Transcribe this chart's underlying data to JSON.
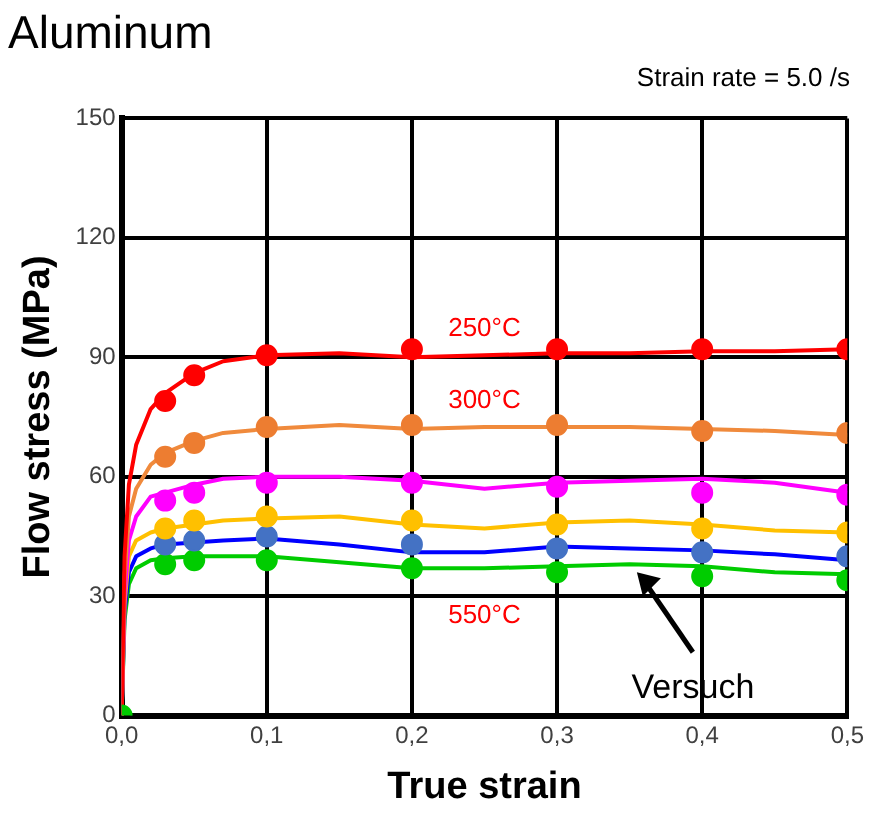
{
  "chart_data": {
    "type": "line",
    "title": "Aluminum",
    "subtitle": "Strain rate = 5.0 /s",
    "xlabel": "True strain",
    "ylabel": "Flow stress (MPa)",
    "xlim": [
      0,
      0.5
    ],
    "ylim": [
      0,
      150
    ],
    "xticks": [
      {
        "value": 0,
        "label": "0,0"
      },
      {
        "value": 0.1,
        "label": "0,1"
      },
      {
        "value": 0.2,
        "label": "0,2"
      },
      {
        "value": 0.3,
        "label": "0,3"
      },
      {
        "value": 0.4,
        "label": "0,4"
      },
      {
        "value": 0.5,
        "label": "0,5"
      }
    ],
    "yticks": [
      0,
      30,
      60,
      90,
      120,
      150
    ],
    "grid": true,
    "legend": false,
    "series": [
      {
        "type": "line",
        "name": "250°C",
        "marker": "none",
        "color": "#ff0000",
        "x": [
          0,
          0.002,
          0.005,
          0.01,
          0.02,
          0.03,
          0.05,
          0.07,
          0.1,
          0.15,
          0.2,
          0.25,
          0.3,
          0.35,
          0.4,
          0.45,
          0.5
        ],
        "values": [
          0,
          40,
          58,
          68,
          77,
          81,
          86,
          89,
          90.5,
          91,
          90,
          90.5,
          91,
          91,
          91.5,
          91.5,
          92
        ]
      },
      {
        "type": "line",
        "name": "300°C",
        "marker": "none",
        "color": "#f08a3c",
        "x": [
          0,
          0.002,
          0.005,
          0.01,
          0.02,
          0.03,
          0.05,
          0.07,
          0.1,
          0.15,
          0.2,
          0.25,
          0.3,
          0.35,
          0.4,
          0.45,
          0.5
        ],
        "values": [
          0,
          35,
          50,
          57,
          63,
          66,
          69,
          71,
          72,
          73,
          72,
          72.5,
          72.5,
          72.5,
          72,
          71.5,
          70.5
        ]
      },
      {
        "type": "line",
        "marker": "none",
        "color": "#ff00ff",
        "x": [
          0,
          0.002,
          0.005,
          0.01,
          0.02,
          0.03,
          0.05,
          0.07,
          0.1,
          0.15,
          0.2,
          0.25,
          0.3,
          0.35,
          0.4,
          0.45,
          0.5
        ],
        "values": [
          0,
          30,
          44,
          50,
          55,
          56,
          58,
          59.5,
          60,
          60,
          59,
          57,
          58.5,
          59,
          59.5,
          58.5,
          56
        ]
      },
      {
        "type": "line",
        "marker": "none",
        "color": "#ffc000",
        "x": [
          0,
          0.002,
          0.005,
          0.01,
          0.02,
          0.03,
          0.05,
          0.07,
          0.1,
          0.15,
          0.2,
          0.25,
          0.3,
          0.35,
          0.4,
          0.45,
          0.5
        ],
        "values": [
          0,
          28,
          40,
          44,
          46,
          47,
          48,
          49,
          49.5,
          50,
          48,
          47,
          48.5,
          49,
          48,
          46.5,
          46
        ]
      },
      {
        "type": "line",
        "marker": "none",
        "color": "#0000ff",
        "x": [
          0,
          0.002,
          0.005,
          0.01,
          0.02,
          0.03,
          0.05,
          0.07,
          0.1,
          0.15,
          0.2,
          0.25,
          0.3,
          0.35,
          0.4,
          0.45,
          0.5
        ],
        "values": [
          0,
          26,
          36,
          40,
          42,
          43,
          43.5,
          44,
          44.5,
          43,
          41,
          41,
          42.5,
          42,
          41.5,
          40.5,
          39
        ]
      },
      {
        "type": "line",
        "name": "550°C",
        "marker": "none",
        "color": "#00cc00",
        "x": [
          0,
          0.002,
          0.005,
          0.01,
          0.02,
          0.03,
          0.05,
          0.07,
          0.1,
          0.15,
          0.2,
          0.25,
          0.3,
          0.35,
          0.4,
          0.45,
          0.5
        ],
        "values": [
          0,
          24,
          33,
          37,
          39,
          39.5,
          40,
          40,
          40,
          38.5,
          37,
          37,
          37.5,
          38,
          37.5,
          36,
          35.5
        ]
      },
      {
        "type": "scatter",
        "marker": "circle",
        "color": "#ff0000",
        "x": [
          0.03,
          0.05,
          0.1,
          0.2,
          0.3,
          0.4,
          0.5
        ],
        "values": [
          79,
          85.5,
          90.5,
          92,
          92,
          92,
          92
        ]
      },
      {
        "type": "scatter",
        "marker": "circle",
        "color": "#ed7d31",
        "x": [
          0.03,
          0.05,
          0.1,
          0.2,
          0.3,
          0.4,
          0.5
        ],
        "values": [
          65,
          68.5,
          72.5,
          73,
          73,
          71.5,
          71
        ]
      },
      {
        "type": "scatter",
        "marker": "circle",
        "color": "#ff00ff",
        "x": [
          0.03,
          0.05,
          0.1,
          0.2,
          0.3,
          0.4,
          0.5
        ],
        "values": [
          54,
          56,
          58.5,
          58.5,
          57.5,
          56,
          55.5
        ]
      },
      {
        "type": "scatter",
        "marker": "circle",
        "color": "#ffc000",
        "x": [
          0.03,
          0.05,
          0.1,
          0.2,
          0.3,
          0.4,
          0.5
        ],
        "values": [
          47,
          49,
          50,
          49,
          48,
          47,
          46
        ]
      },
      {
        "type": "scatter",
        "marker": "circle",
        "color": "#4472c4",
        "x": [
          0.03,
          0.05,
          0.1,
          0.2,
          0.3,
          0.4,
          0.5
        ],
        "values": [
          43,
          44,
          45,
          43,
          42,
          41,
          40
        ]
      },
      {
        "type": "scatter",
        "marker": "circle",
        "color": "#00cc00",
        "x": [
          0,
          0.03,
          0.05,
          0.1,
          0.2,
          0.3,
          0.4,
          0.5
        ],
        "values": [
          0,
          38,
          39,
          39,
          37,
          36,
          35,
          34
        ]
      }
    ],
    "annotations": [
      {
        "text": "Versuch",
        "x": 0.355,
        "y": 36
      }
    ]
  }
}
